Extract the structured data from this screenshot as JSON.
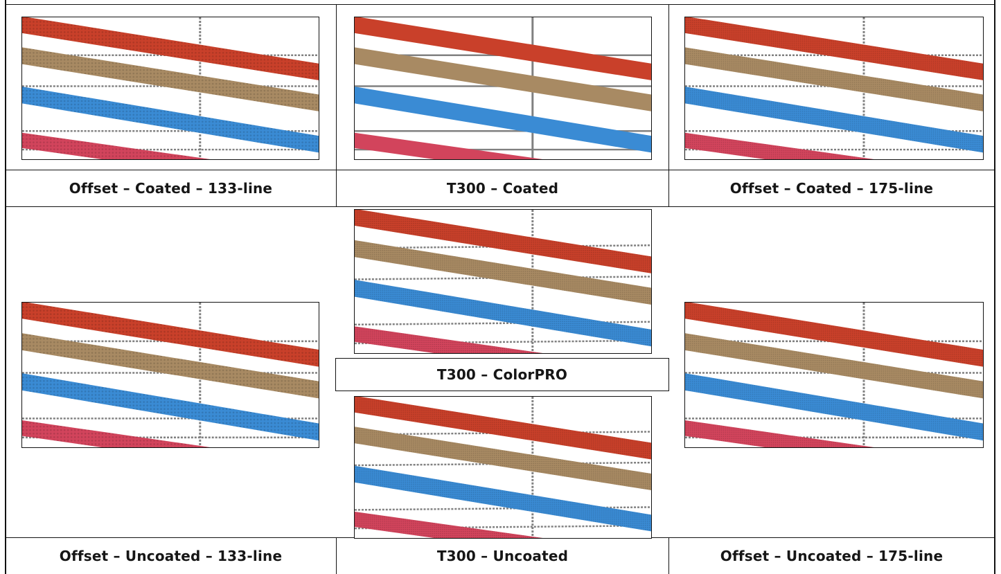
{
  "captions": {
    "top_left": "Offset – Coated – 133-line",
    "top_center": "T300 – Coated",
    "top_right": "Offset – Coated – 175-line",
    "mid_center": "T300 – ColorPRO",
    "bottom_left": "Offset – Uncoated – 133-line",
    "bottom_center": "T300 – Uncoated",
    "bottom_right": "Offset – Uncoated – 175-line"
  },
  "colors": {
    "red_band": "#c9402a",
    "tan_band": "#a88a63",
    "blue_band": "#3a8bd4",
    "pink_band": "#d2445c",
    "grid_line": "#808080",
    "border": "#111111"
  },
  "samples": [
    {
      "name": "offset-coated-133-sample",
      "texture": "dotted"
    },
    {
      "name": "t300-coated-sample",
      "texture": "smooth"
    },
    {
      "name": "offset-coated-175-sample",
      "texture": "fine"
    },
    {
      "name": "offset-uncoated-133-sample",
      "texture": "dotted"
    },
    {
      "name": "t300-colorpro-sample",
      "texture": "grainy"
    },
    {
      "name": "t300-uncoated-sample",
      "texture": "grainy"
    },
    {
      "name": "offset-uncoated-175-sample",
      "texture": "fine"
    }
  ]
}
